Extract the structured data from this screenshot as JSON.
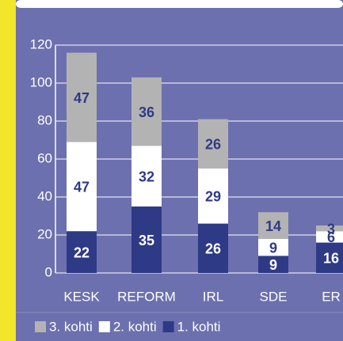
{
  "chart_data": {
    "type": "stacked_bar",
    "categories": [
      "KESK",
      "REFORM",
      "IRL",
      "SDE",
      "ER"
    ],
    "series": [
      {
        "name": "1. kohti",
        "color": "#2f3a86",
        "values": [
          22,
          35,
          26,
          9,
          16
        ]
      },
      {
        "name": "2. kohti",
        "color": "#ffffff",
        "values": [
          47,
          32,
          29,
          9,
          6
        ]
      },
      {
        "name": "3. kohti",
        "color": "#b3b3b3",
        "values": [
          47,
          36,
          26,
          14,
          3
        ]
      }
    ],
    "ylim": [
      0,
      120
    ],
    "yticks": [
      0,
      20,
      40,
      60,
      80,
      100,
      120
    ],
    "grid": true
  }
}
